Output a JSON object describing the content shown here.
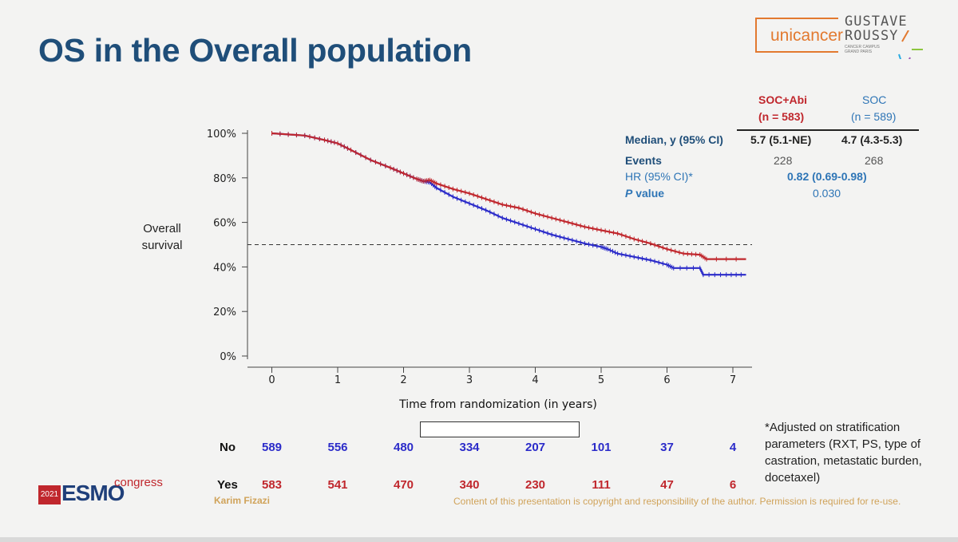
{
  "slide": {
    "title": "OS in the Overall population"
  },
  "logos": {
    "unicancer": "unicancer",
    "gustave_roussy": "GUSTAVE ROUSSY",
    "gustave_roussy_line1": "GUSTAVE",
    "gustave_roussy_line2": "ROUSSY",
    "gustave_roussy_sub1": "CANCER CAMPUS",
    "gustave_roussy_sub2": "GRAND PARIS",
    "esmo_year": "2021",
    "esmo_word": "ESMO",
    "esmo_congress": "congress"
  },
  "summary_table": {
    "col1_name": "SOC+Abi",
    "col1_n": "(n = 583)",
    "col2_name": "SOC",
    "col2_n": "(n = 589)",
    "rows": {
      "median_label": "Median, y (95% CI)",
      "median_col1": "5.7 (5.1-NE)",
      "median_col2": "4.7 (4.3-5.3)",
      "events_label": "Events",
      "events_col1": "228",
      "events_col2": "268",
      "hr_label": "HR (95% CI)*",
      "hr_value": "0.82 (0.69-0.98)",
      "p_label_italic": "P",
      "p_label_rest": " value",
      "p_value": "0.030"
    }
  },
  "chart_data": {
    "type": "line",
    "title": "",
    "xlabel": "Time from randomization (in years)",
    "ylabel": "Overall survival",
    "ylabel_line1": "Overall",
    "ylabel_line2": "survival",
    "xlim": [
      -0.35,
      7.3
    ],
    "ylim": [
      0,
      100
    ],
    "x_ticks": [
      0,
      1,
      2,
      3,
      4,
      5,
      6,
      7
    ],
    "x_tick_labels": [
      "0",
      "1",
      "2",
      "3",
      "4",
      "5",
      "6",
      "7"
    ],
    "y_ticks": [
      0,
      20,
      40,
      60,
      80,
      100
    ],
    "y_tick_labels": [
      "0%",
      "20%",
      "40%",
      "60%",
      "80%",
      "100%"
    ],
    "reference_line": {
      "y": 50,
      "style": "dashed"
    },
    "legend": {
      "placement": "bottom-center",
      "entries": [
        "No",
        "Yes"
      ]
    },
    "series": [
      {
        "name": "No",
        "color": "#2b2bc9",
        "style": "solid",
        "x": [
          0,
          0.5,
          0.8,
          1.0,
          1.2,
          1.5,
          1.8,
          2.0,
          2.2,
          2.3,
          2.4,
          2.5,
          2.75,
          3.0,
          3.25,
          3.5,
          3.75,
          4.0,
          4.25,
          4.5,
          4.75,
          5.0,
          5.1,
          5.25,
          5.5,
          5.75,
          6.0,
          6.1,
          6.5,
          6.55,
          6.9,
          7.2
        ],
        "y": [
          100,
          99,
          97,
          95.5,
          92.5,
          88,
          84.5,
          82,
          79.5,
          78.5,
          78,
          75.5,
          71.5,
          68.5,
          65.5,
          62,
          59.5,
          57,
          54.5,
          52.5,
          50.5,
          49,
          48,
          46,
          44.5,
          43,
          41,
          39.5,
          39.5,
          36.5,
          36.5,
          36.5
        ]
      },
      {
        "name": "Yes",
        "color": "#c0272d",
        "style": "dashed",
        "x": [
          0,
          0.5,
          0.8,
          1.0,
          1.2,
          1.5,
          1.8,
          2.0,
          2.2,
          2.3,
          2.4,
          2.5,
          2.75,
          3.0,
          3.25,
          3.5,
          3.75,
          4.0,
          4.25,
          4.5,
          4.75,
          5.0,
          5.25,
          5.5,
          5.75,
          6.0,
          6.25,
          6.5,
          6.6,
          7.2
        ],
        "y": [
          100,
          99,
          97,
          95.5,
          92.5,
          88,
          84.5,
          82,
          79.5,
          78.5,
          79,
          77.5,
          75,
          73,
          70.5,
          68,
          66.5,
          64,
          62,
          60,
          58,
          56.5,
          55,
          52.5,
          50.5,
          48,
          46,
          45.5,
          43.5,
          43.5
        ]
      }
    ],
    "number_at_risk": {
      "times": [
        0,
        1,
        2,
        3,
        4,
        5,
        6,
        7
      ],
      "No": [
        "589",
        "556",
        "480",
        "334",
        "207",
        "101",
        "37",
        "4"
      ],
      "Yes": [
        "583",
        "541",
        "470",
        "340",
        "230",
        "111",
        "47",
        "6"
      ]
    }
  },
  "footnote": "*Adjusted on stratification parameters (RXT, PS, type of castration, metastatic burden, docetaxel)",
  "presenter": "Karim Fizazi",
  "copyright": "Content of this presentation is copyright and responsibility of the author. Permission is required for re-use."
}
